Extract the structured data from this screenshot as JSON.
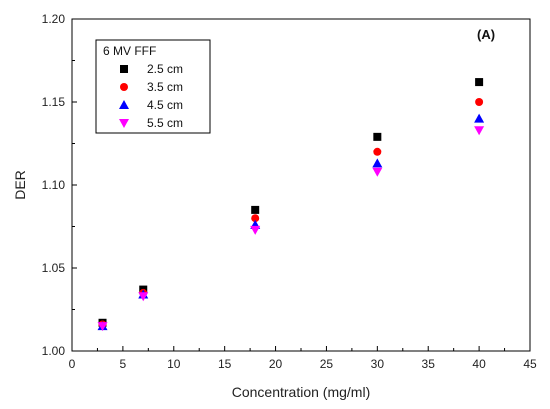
{
  "chart_data": {
    "type": "scatter",
    "title": "",
    "panel_label": "(A)",
    "xlabel": "Concentration (mg/ml)",
    "ylabel": "DER",
    "xlim": [
      0,
      45
    ],
    "ylim": [
      1.0,
      1.2
    ],
    "x_ticks": [
      "0",
      "5",
      "10",
      "15",
      "20",
      "25",
      "30",
      "35",
      "40",
      "45"
    ],
    "y_ticks": [
      "1.00",
      "1.05",
      "1.10",
      "1.15",
      "1.20"
    ],
    "grid": false,
    "legend_placement": "top-left",
    "legend_title": "6 MV FFF",
    "x": [
      3,
      7,
      18,
      30,
      40
    ],
    "series": [
      {
        "name": "2.5 cm",
        "marker": "square",
        "color": "#000000",
        "values": [
          1.017,
          1.037,
          1.085,
          1.129,
          1.162
        ]
      },
      {
        "name": "3.5 cm",
        "marker": "circle",
        "color": "#ff0000",
        "values": [
          1.016,
          1.035,
          1.08,
          1.12,
          1.15
        ]
      },
      {
        "name": "4.5 cm",
        "marker": "triangle-up",
        "color": "#0000ff",
        "values": [
          1.015,
          1.034,
          1.076,
          1.113,
          1.14
        ]
      },
      {
        "name": "5.5 cm",
        "marker": "triangle-down",
        "color": "#ff00ff",
        "values": [
          1.015,
          1.033,
          1.073,
          1.108,
          1.133
        ]
      }
    ]
  }
}
